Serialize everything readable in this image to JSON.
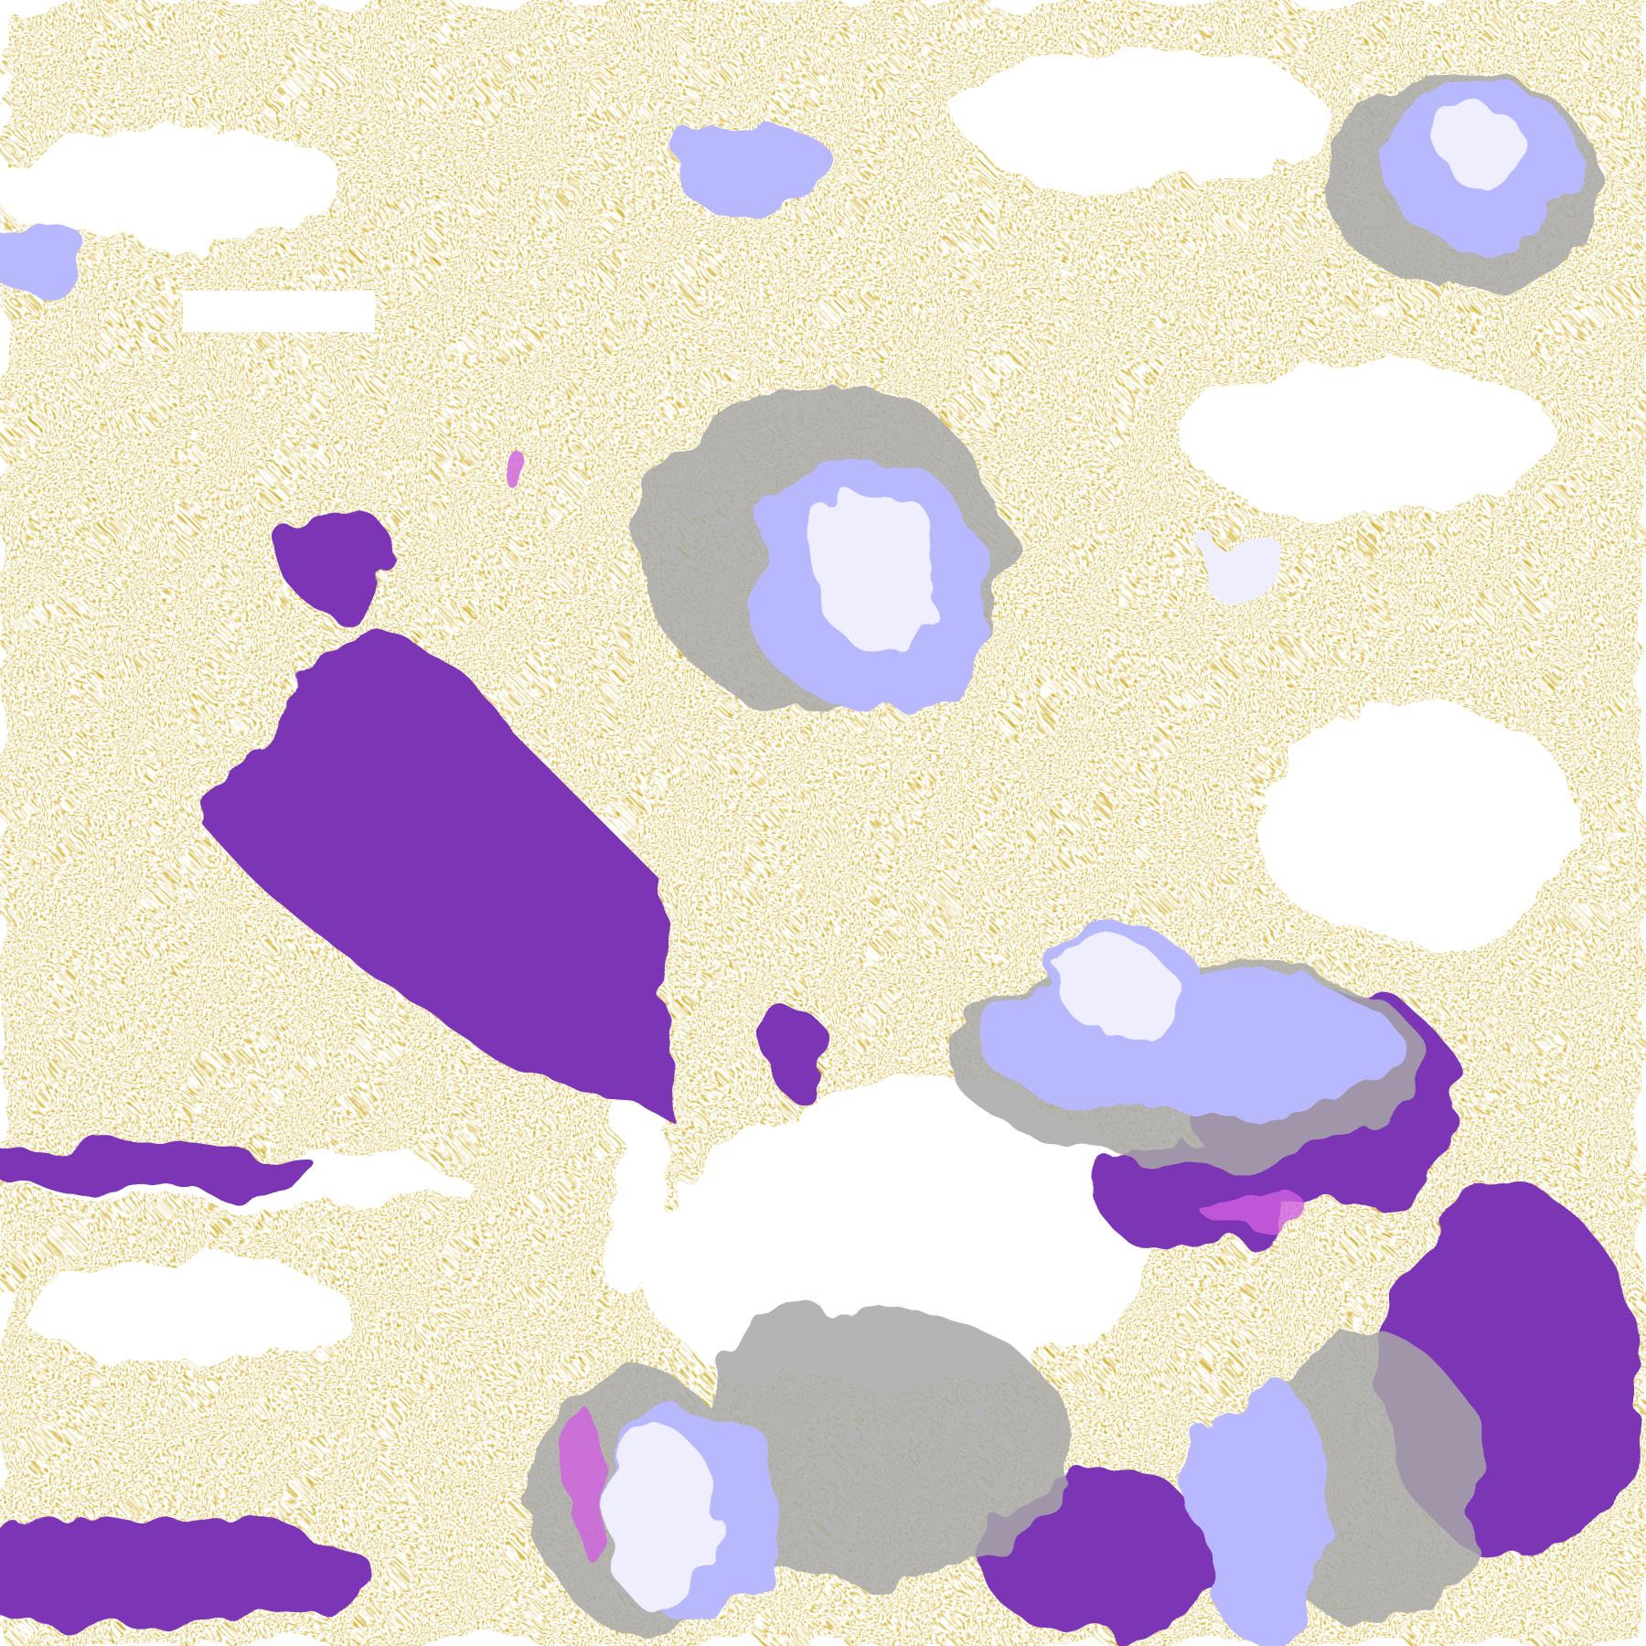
{
  "palette": {
    "background": "#ffffff",
    "gold": "#c9a000",
    "purple": "#7b35b5",
    "lavender": "#b8b8ff",
    "pale_lavender": "#eeeeff",
    "gray": "#a8a8a8",
    "magenta": "#d060e0"
  }
}
